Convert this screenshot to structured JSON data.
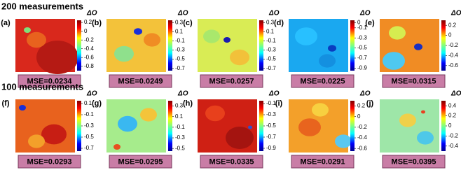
{
  "sections": [
    {
      "title": "200 measurements",
      "panels": [
        {
          "label": "(a)",
          "colorbar_title": "ΔO",
          "clim": [
            -0.9,
            0.25
          ],
          "ticks": [
            0.2,
            0,
            -0.2,
            -0.4,
            -0.6,
            -0.8
          ],
          "mse": "MSE=0.0234"
        },
        {
          "label": "(b)",
          "colorbar_title": "ΔO",
          "clim": [
            -0.75,
            0.35
          ],
          "ticks": [
            0.3,
            0.1,
            -0.1,
            -0.3,
            -0.5,
            -0.7
          ],
          "mse": "MSE=0.0249"
        },
        {
          "label": "(c)",
          "colorbar_title": "ΔO",
          "clim": [
            -0.75,
            0.35
          ],
          "ticks": [
            0.3,
            0.1,
            -0.1,
            -0.3,
            -0.5,
            -0.7
          ],
          "mse": "MSE=0.0257"
        },
        {
          "label": "(d)",
          "colorbar_title": "ΔO",
          "clim": [
            -0.95,
            0.05
          ],
          "ticks": [
            0,
            -0.1,
            -0.3,
            -0.5,
            -0.7,
            -0.9
          ],
          "mse": "MSE=0.0225"
        },
        {
          "label": "(e)",
          "colorbar_title": "ΔO",
          "clim": [
            -0.7,
            0.3
          ],
          "ticks": [
            0.2,
            0,
            -0.2,
            -0.4,
            -0.6
          ],
          "mse": "MSE=0.0315"
        }
      ]
    },
    {
      "title": "100 measurements",
      "panels": [
        {
          "label": "(f)",
          "colorbar_title": "ΔO",
          "clim": [
            -0.75,
            0.15
          ],
          "ticks": [
            0.1,
            -0.1,
            -0.3,
            -0.5,
            -0.7
          ],
          "mse": "MSE=0.0293"
        },
        {
          "label": "(g)",
          "colorbar_title": "ΔO",
          "clim": [
            -0.55,
            0.4
          ],
          "ticks": [
            0.3,
            0.1,
            -0.1,
            -0.3,
            -0.5
          ],
          "mse": "MSE=0.0295"
        },
        {
          "label": "(h)",
          "colorbar_title": "ΔO",
          "clim": [
            -0.95,
            -0.05
          ],
          "ticks": [
            -0.1,
            -0.3,
            -0.5,
            -0.7,
            -0.9
          ],
          "mse": "MSE=0.0335"
        },
        {
          "label": "(i)",
          "colorbar_title": "ΔO",
          "clim": [
            -0.65,
            0.3
          ],
          "ticks": [
            0.2,
            0,
            -0.2,
            -0.4,
            -0.6
          ],
          "mse": "MSE=0.0291"
        },
        {
          "label": "(j)",
          "colorbar_title": "ΔO",
          "clim": [
            -0.5,
            0.5
          ],
          "ticks": [
            0.4,
            0.2,
            0,
            -0.2,
            -0.4
          ],
          "mse": "MSE=0.0395"
        }
      ]
    }
  ]
}
